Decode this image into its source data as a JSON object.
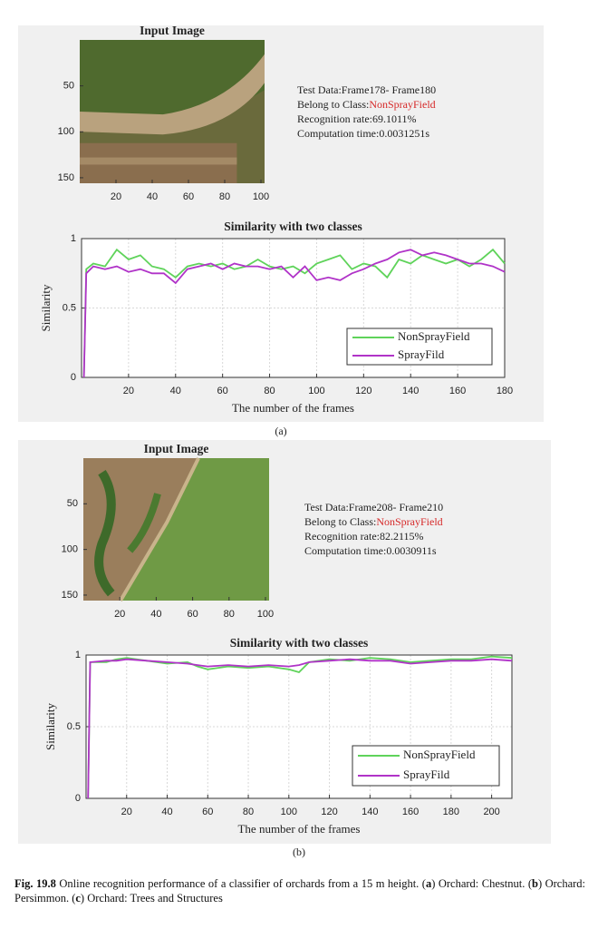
{
  "panels": [
    {
      "label": "(a)",
      "image": {
        "title": "Input Image",
        "xlim": [
          0,
          102
        ],
        "ylim": [
          0,
          156
        ],
        "xticks": [
          20,
          40,
          60,
          80,
          100
        ],
        "yticks": [
          50,
          100,
          150
        ]
      },
      "info": {
        "test_data": "Test Data:Frame178- Frame180",
        "class_label": "Belong to Class:",
        "class_name": "NonSprayField",
        "recognition": "Recognition rate:69.1011%",
        "computation": "Computation time:0.0031251s"
      }
    },
    {
      "label": "(b)",
      "image": {
        "title": "Input Image",
        "xlim": [
          0,
          102
        ],
        "ylim": [
          0,
          156
        ],
        "xticks": [
          20,
          40,
          60,
          80,
          100
        ],
        "yticks": [
          50,
          100,
          150
        ]
      },
      "info": {
        "test_data": "Test Data:Frame208- Frame210",
        "class_label": "Belong to Class:",
        "class_name": "NonSprayField",
        "recognition": "Recognition rate:82.2115%",
        "computation": "Computation time:0.0030911s"
      }
    }
  ],
  "chart_data": [
    {
      "type": "line",
      "title": "Similarity with two classes",
      "x_label": "The number of the frames",
      "y_label": "Similarity",
      "x": [
        1,
        2,
        5,
        10,
        15,
        20,
        25,
        30,
        35,
        40,
        45,
        50,
        55,
        60,
        65,
        70,
        75,
        80,
        85,
        90,
        95,
        100,
        105,
        110,
        115,
        120,
        125,
        130,
        135,
        140,
        145,
        150,
        155,
        160,
        165,
        170,
        175,
        180
      ],
      "series": [
        {
          "name": "NonSprayField",
          "color": "#5fd35a",
          "values": [
            0,
            0.78,
            0.82,
            0.8,
            0.92,
            0.85,
            0.88,
            0.8,
            0.78,
            0.72,
            0.8,
            0.82,
            0.8,
            0.82,
            0.78,
            0.8,
            0.85,
            0.8,
            0.78,
            0.8,
            0.75,
            0.82,
            0.85,
            0.88,
            0.78,
            0.82,
            0.8,
            0.72,
            0.85,
            0.82,
            0.88,
            0.85,
            0.82,
            0.85,
            0.8,
            0.85,
            0.92,
            0.82
          ]
        },
        {
          "name": "SprayFild",
          "color": "#b033c8",
          "values": [
            0,
            0.75,
            0.8,
            0.78,
            0.8,
            0.76,
            0.78,
            0.75,
            0.75,
            0.68,
            0.78,
            0.8,
            0.82,
            0.78,
            0.82,
            0.8,
            0.8,
            0.78,
            0.8,
            0.72,
            0.8,
            0.7,
            0.72,
            0.7,
            0.75,
            0.78,
            0.82,
            0.85,
            0.9,
            0.92,
            0.88,
            0.9,
            0.88,
            0.85,
            0.82,
            0.82,
            0.8,
            0.76
          ]
        }
      ],
      "xlim": [
        0,
        180
      ],
      "xticks": [
        20,
        40,
        60,
        80,
        100,
        120,
        140,
        160,
        180
      ],
      "ylim": [
        0,
        1
      ],
      "yticks": [
        0,
        0.5,
        1
      ],
      "grid": true,
      "legend": "lower-right"
    },
    {
      "type": "line",
      "title": "Similarity with two classes",
      "x_label": "The number of the frames",
      "y_label": "Similarity",
      "x": [
        1,
        2,
        10,
        15,
        20,
        30,
        40,
        50,
        55,
        60,
        70,
        80,
        90,
        100,
        105,
        110,
        120,
        130,
        140,
        150,
        160,
        170,
        180,
        190,
        200,
        210
      ],
      "series": [
        {
          "name": "NonSprayField",
          "color": "#5fd35a",
          "values": [
            0,
            0.95,
            0.95,
            0.97,
            0.98,
            0.96,
            0.94,
            0.95,
            0.92,
            0.9,
            0.92,
            0.91,
            0.92,
            0.9,
            0.88,
            0.95,
            0.97,
            0.96,
            0.98,
            0.97,
            0.95,
            0.96,
            0.97,
            0.97,
            0.99,
            0.98
          ]
        },
        {
          "name": "SprayFild",
          "color": "#b033c8",
          "values": [
            0,
            0.95,
            0.96,
            0.96,
            0.97,
            0.96,
            0.95,
            0.94,
            0.93,
            0.92,
            0.93,
            0.92,
            0.93,
            0.92,
            0.93,
            0.95,
            0.96,
            0.97,
            0.96,
            0.96,
            0.94,
            0.95,
            0.96,
            0.96,
            0.97,
            0.96
          ]
        }
      ],
      "xlim": [
        0,
        210
      ],
      "xticks": [
        20,
        40,
        60,
        80,
        100,
        120,
        140,
        160,
        180,
        200
      ],
      "ylim": [
        0,
        1
      ],
      "yticks": [
        0,
        0.5,
        1
      ],
      "grid": true,
      "legend": "lower-right"
    }
  ],
  "caption": {
    "label": "Fig. 19.8",
    "runs": [
      "Online recognition performance of a classifier of orchards from a 15 m height. (",
      "a",
      ") Orchard: Chestnut. (",
      "b",
      ") Orchard: Persimmon. (",
      "c",
      ") Orchard: Trees and Structures"
    ]
  }
}
